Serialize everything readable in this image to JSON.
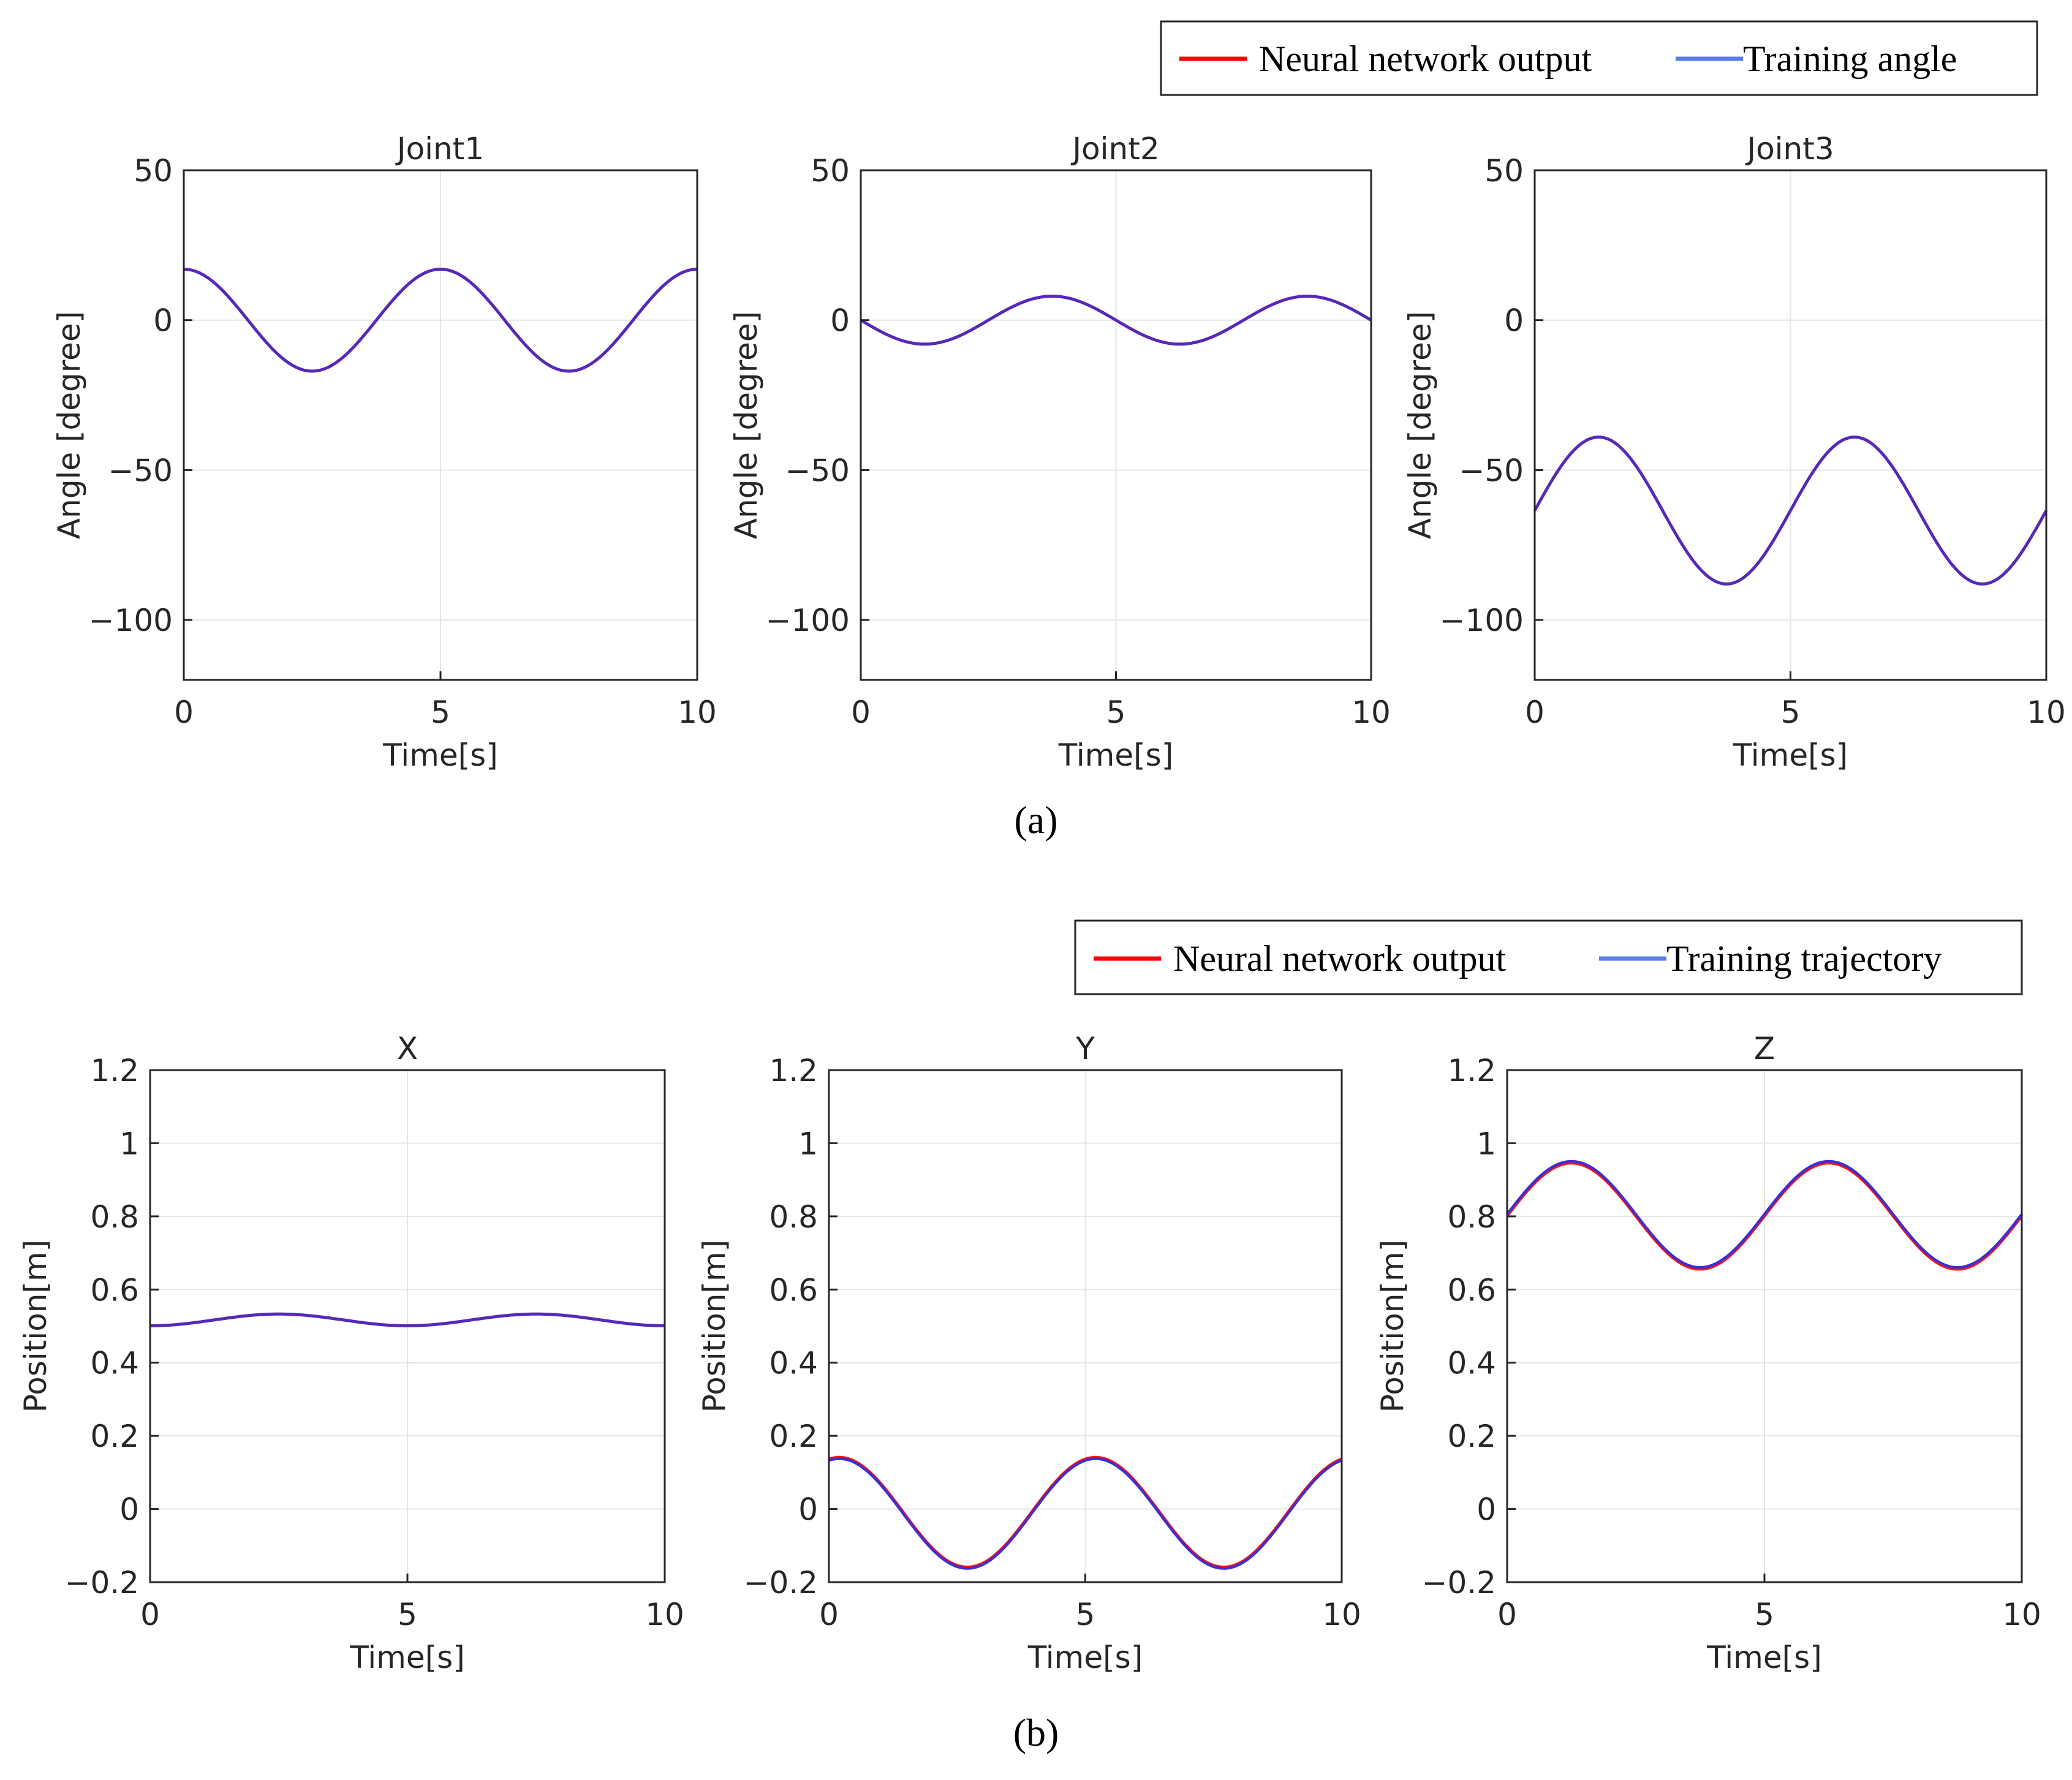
{
  "figure": {
    "panel_a_label": "(a)",
    "panel_b_label": "(b)",
    "colors": {
      "network": "#ff0000",
      "training": "#5b7fe6",
      "overlap": "#3b30d6",
      "grid": "#e6e6e6",
      "axis": "#262626"
    }
  },
  "legend_a": {
    "items": [
      "Neural network output",
      "Training angle"
    ]
  },
  "legend_b": {
    "items": [
      "Neural network output",
      "Training trajectory"
    ]
  },
  "chart_data": [
    {
      "type": "line",
      "title": "Joint1",
      "xlabel": "Time[s]",
      "ylabel": "Angle [degree]",
      "xlim": [
        0,
        10
      ],
      "ylim": [
        -120,
        50
      ],
      "xticks": [
        0,
        5,
        10
      ],
      "yticks": [
        50,
        0,
        -50,
        -100
      ],
      "grid": true,
      "series": [
        {
          "name": "Training angle",
          "func": {
            "mean": 0,
            "amp": 17,
            "period": 5,
            "phase": 0,
            "kind": "cos"
          }
        },
        {
          "name": "Neural network output",
          "func": {
            "mean": 0,
            "amp": 17,
            "period": 5,
            "phase": 0,
            "kind": "cos"
          }
        }
      ]
    },
    {
      "type": "line",
      "title": "Joint2",
      "xlabel": "Time[s]",
      "ylabel": "Angle [degree]",
      "xlim": [
        0,
        10
      ],
      "ylim": [
        -120,
        50
      ],
      "xticks": [
        0,
        5,
        10
      ],
      "yticks": [
        50,
        0,
        -50,
        -100
      ],
      "grid": true,
      "series": [
        {
          "name": "Training angle",
          "func": {
            "mean": 0,
            "amp": 8,
            "period": 5,
            "phase": 0,
            "kind": "-sin"
          }
        },
        {
          "name": "Neural network output",
          "func": {
            "mean": 0,
            "amp": 8,
            "period": 5,
            "phase": 0,
            "kind": "-sin"
          }
        }
      ]
    },
    {
      "type": "line",
      "title": "Joint3",
      "xlabel": "Time[s]",
      "ylabel": "Angle [degree]",
      "xlim": [
        0,
        10
      ],
      "ylim": [
        -120,
        50
      ],
      "xticks": [
        0,
        5,
        10
      ],
      "yticks": [
        50,
        0,
        -50,
        -100
      ],
      "grid": true,
      "series": [
        {
          "name": "Training angle",
          "func": {
            "mean": -63.5,
            "amp": 24.5,
            "period": 5,
            "phase": 0,
            "kind": "sin"
          }
        },
        {
          "name": "Neural network output",
          "func": {
            "mean": -63.5,
            "amp": 24.5,
            "period": 5,
            "phase": 0,
            "kind": "sin"
          }
        }
      ]
    },
    {
      "type": "line",
      "title": "X",
      "xlabel": "Time[s]",
      "ylabel": "Position[m]",
      "xlim": [
        0,
        10
      ],
      "ylim": [
        -0.2,
        1.2
      ],
      "xticks": [
        0,
        5,
        10
      ],
      "yticks": [
        1.2,
        1,
        0.8,
        0.6,
        0.4,
        0.2,
        0,
        -0.2
      ],
      "ytick_labels": [
        "1.2",
        "1",
        "0.8",
        "0.6",
        "0.4",
        "0.2",
        "0",
        "−0.2"
      ],
      "grid": true,
      "series": [
        {
          "name": "Training trajectory",
          "func": {
            "mean": 0.517,
            "amp": 0.016,
            "period": 5,
            "phase": 0,
            "kind": "-cos"
          }
        },
        {
          "name": "Neural network output",
          "func": {
            "mean": 0.517,
            "amp": 0.016,
            "period": 5,
            "phase": 0,
            "kind": "-cos"
          }
        }
      ]
    },
    {
      "type": "line",
      "title": "Y",
      "xlabel": "Time[s]",
      "ylabel": "Position[m]",
      "xlim": [
        0,
        10
      ],
      "ylim": [
        -0.2,
        1.2
      ],
      "xticks": [
        0,
        5,
        10
      ],
      "yticks": [
        1.2,
        1,
        0.8,
        0.6,
        0.4,
        0.2,
        0,
        -0.2
      ],
      "ytick_labels": [
        "1.2",
        "1",
        "0.8",
        "0.6",
        "0.4",
        "0.2",
        "0",
        "−0.2"
      ],
      "grid": true,
      "series": [
        {
          "name": "Training trajectory",
          "func": {
            "mean": -0.012,
            "amp": 0.15,
            "period": 5,
            "phase": 0.2,
            "kind": "cos"
          }
        },
        {
          "name": "Neural network output",
          "func": {
            "mean": -0.008,
            "amp": 0.15,
            "period": 5,
            "phase": 0.2,
            "kind": "cos"
          }
        }
      ]
    },
    {
      "type": "line",
      "title": "Z",
      "xlabel": "Time[s]",
      "ylabel": "Position[m]",
      "xlim": [
        0,
        10
      ],
      "ylim": [
        -0.2,
        1.2
      ],
      "xticks": [
        0,
        5,
        10
      ],
      "yticks": [
        1.2,
        1,
        0.8,
        0.6,
        0.4,
        0.2,
        0,
        -0.2
      ],
      "ytick_labels": [
        "1.2",
        "1",
        "0.8",
        "0.6",
        "0.4",
        "0.2",
        "0",
        "−0.2"
      ],
      "grid": true,
      "series": [
        {
          "name": "Training trajectory",
          "func": {
            "mean": 0.805,
            "amp": 0.145,
            "period": 5,
            "phase": 0,
            "kind": "sin"
          }
        },
        {
          "name": "Neural network output",
          "func": {
            "mean": 0.8,
            "amp": 0.145,
            "period": 5,
            "phase": 0,
            "kind": "sin"
          }
        }
      ]
    }
  ]
}
